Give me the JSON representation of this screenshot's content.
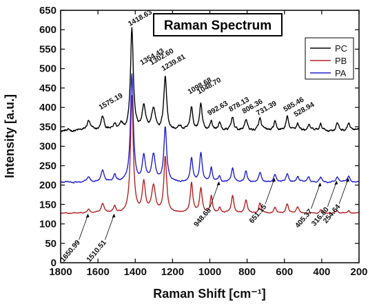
{
  "chart_data": {
    "type": "line",
    "title": "Raman Spectrum",
    "xlabel": "Raman Shift [cm⁻¹]",
    "ylabel": "Intensity [a.u.]",
    "xlim": [
      1800,
      200
    ],
    "ylim": [
      0,
      650
    ],
    "x_ticks": [
      1800,
      1600,
      1400,
      1200,
      1000,
      800,
      600,
      400,
      200
    ],
    "y_ticks": [
      0,
      50,
      100,
      150,
      200,
      250,
      300,
      350,
      400,
      450,
      500,
      550,
      600,
      650
    ],
    "legend_position": "top-right",
    "series": [
      {
        "name": "PC",
        "color": "#000000",
        "baseline": 340,
        "noise": 8,
        "peaks": [
          {
            "x": 1650,
            "h": 25,
            "w": 10
          },
          {
            "x": 1575,
            "h": 35,
            "w": 10
          },
          {
            "x": 1510,
            "h": 15,
            "w": 8
          },
          {
            "x": 1475,
            "h": 20,
            "w": 10
          },
          {
            "x": 1418,
            "h": 265,
            "w": 9
          },
          {
            "x": 1354,
            "h": 60,
            "w": 10
          },
          {
            "x": 1302,
            "h": 55,
            "w": 12
          },
          {
            "x": 1239,
            "h": 140,
            "w": 9
          },
          {
            "x": 1160,
            "h": 10,
            "w": 10
          },
          {
            "x": 1098,
            "h": 60,
            "w": 8
          },
          {
            "x": 1048,
            "h": 70,
            "w": 8
          },
          {
            "x": 992,
            "h": 25,
            "w": 7
          },
          {
            "x": 948,
            "h": 20,
            "w": 8
          },
          {
            "x": 878,
            "h": 35,
            "w": 8
          },
          {
            "x": 806,
            "h": 30,
            "w": 8
          },
          {
            "x": 731,
            "h": 30,
            "w": 8
          },
          {
            "x": 651,
            "h": 20,
            "w": 8
          },
          {
            "x": 585,
            "h": 35,
            "w": 8
          },
          {
            "x": 529,
            "h": 20,
            "w": 8
          },
          {
            "x": 470,
            "h": 15,
            "w": 8
          },
          {
            "x": 405,
            "h": 15,
            "w": 8
          },
          {
            "x": 317,
            "h": 20,
            "w": 8
          },
          {
            "x": 255,
            "h": 20,
            "w": 8
          }
        ]
      },
      {
        "name": "PB",
        "color": "#b22222",
        "baseline": 127,
        "noise": 3,
        "peaks": [
          {
            "x": 1650,
            "h": 10,
            "w": 8
          },
          {
            "x": 1575,
            "h": 25,
            "w": 10
          },
          {
            "x": 1510,
            "h": 18,
            "w": 8
          },
          {
            "x": 1418,
            "h": 300,
            "w": 9
          },
          {
            "x": 1354,
            "h": 75,
            "w": 10
          },
          {
            "x": 1302,
            "h": 70,
            "w": 12
          },
          {
            "x": 1239,
            "h": 145,
            "w": 9
          },
          {
            "x": 1098,
            "h": 75,
            "w": 8
          },
          {
            "x": 1048,
            "h": 65,
            "w": 8
          },
          {
            "x": 992,
            "h": 45,
            "w": 7
          },
          {
            "x": 948,
            "h": 15,
            "w": 8
          },
          {
            "x": 878,
            "h": 45,
            "w": 8
          },
          {
            "x": 806,
            "h": 35,
            "w": 8
          },
          {
            "x": 731,
            "h": 25,
            "w": 8
          },
          {
            "x": 651,
            "h": 15,
            "w": 8
          },
          {
            "x": 585,
            "h": 25,
            "w": 8
          },
          {
            "x": 529,
            "h": 15,
            "w": 8
          },
          {
            "x": 405,
            "h": 8,
            "w": 8
          },
          {
            "x": 317,
            "h": 8,
            "w": 8
          },
          {
            "x": 255,
            "h": 8,
            "w": 8
          }
        ]
      },
      {
        "name": "PA",
        "color": "#1f1fd0",
        "baseline": 207,
        "noise": 4,
        "peaks": [
          {
            "x": 1650,
            "h": 12,
            "w": 10
          },
          {
            "x": 1575,
            "h": 30,
            "w": 10
          },
          {
            "x": 1510,
            "h": 20,
            "w": 8
          },
          {
            "x": 1418,
            "h": 275,
            "w": 9
          },
          {
            "x": 1354,
            "h": 65,
            "w": 10
          },
          {
            "x": 1302,
            "h": 70,
            "w": 12
          },
          {
            "x": 1239,
            "h": 140,
            "w": 9
          },
          {
            "x": 1098,
            "h": 60,
            "w": 8
          },
          {
            "x": 1048,
            "h": 75,
            "w": 8
          },
          {
            "x": 992,
            "h": 35,
            "w": 7
          },
          {
            "x": 948,
            "h": 15,
            "w": 8
          },
          {
            "x": 878,
            "h": 35,
            "w": 8
          },
          {
            "x": 806,
            "h": 30,
            "w": 8
          },
          {
            "x": 731,
            "h": 25,
            "w": 8
          },
          {
            "x": 651,
            "h": 20,
            "w": 8
          },
          {
            "x": 585,
            "h": 20,
            "w": 8
          },
          {
            "x": 529,
            "h": 15,
            "w": 8
          },
          {
            "x": 470,
            "h": 12,
            "w": 8
          },
          {
            "x": 405,
            "h": 12,
            "w": 8
          },
          {
            "x": 317,
            "h": 12,
            "w": 8
          },
          {
            "x": 255,
            "h": 15,
            "w": 8
          }
        ]
      }
    ],
    "annotations_top": [
      {
        "text": "1418.63",
        "x": 1418,
        "y": 605
      },
      {
        "text": "1575.19",
        "x": 1575,
        "y": 390
      },
      {
        "text": "1354.43",
        "x": 1354,
        "y": 505
      },
      {
        "text": "1302.60",
        "x": 1302,
        "y": 505
      },
      {
        "text": "1239.81",
        "x": 1239,
        "y": 490
      },
      {
        "text": "1098.68",
        "x": 1098,
        "y": 430
      },
      {
        "text": "1048.70",
        "x": 1048,
        "y": 430
      },
      {
        "text": "992.63",
        "x": 992,
        "y": 375
      },
      {
        "text": "878.13",
        "x": 878,
        "y": 385
      },
      {
        "text": "806.36",
        "x": 806,
        "y": 380
      },
      {
        "text": "731.39",
        "x": 731,
        "y": 375
      },
      {
        "text": "585.46",
        "x": 585,
        "y": 385
      },
      {
        "text": "528.94",
        "x": 529,
        "y": 372
      }
    ],
    "annotations_bottom": [
      {
        "text": "1650.99",
        "x": 1650,
        "y": 130
      },
      {
        "text": "1510.51",
        "x": 1510,
        "y": 130
      },
      {
        "text": "948.68",
        "x": 948,
        "y": 213
      },
      {
        "text": "651.15",
        "x": 651,
        "y": 222
      },
      {
        "text": "405.37",
        "x": 405,
        "y": 210
      },
      {
        "text": "316.80",
        "x": 317,
        "y": 215
      },
      {
        "text": "254.64",
        "x": 255,
        "y": 222
      }
    ]
  }
}
